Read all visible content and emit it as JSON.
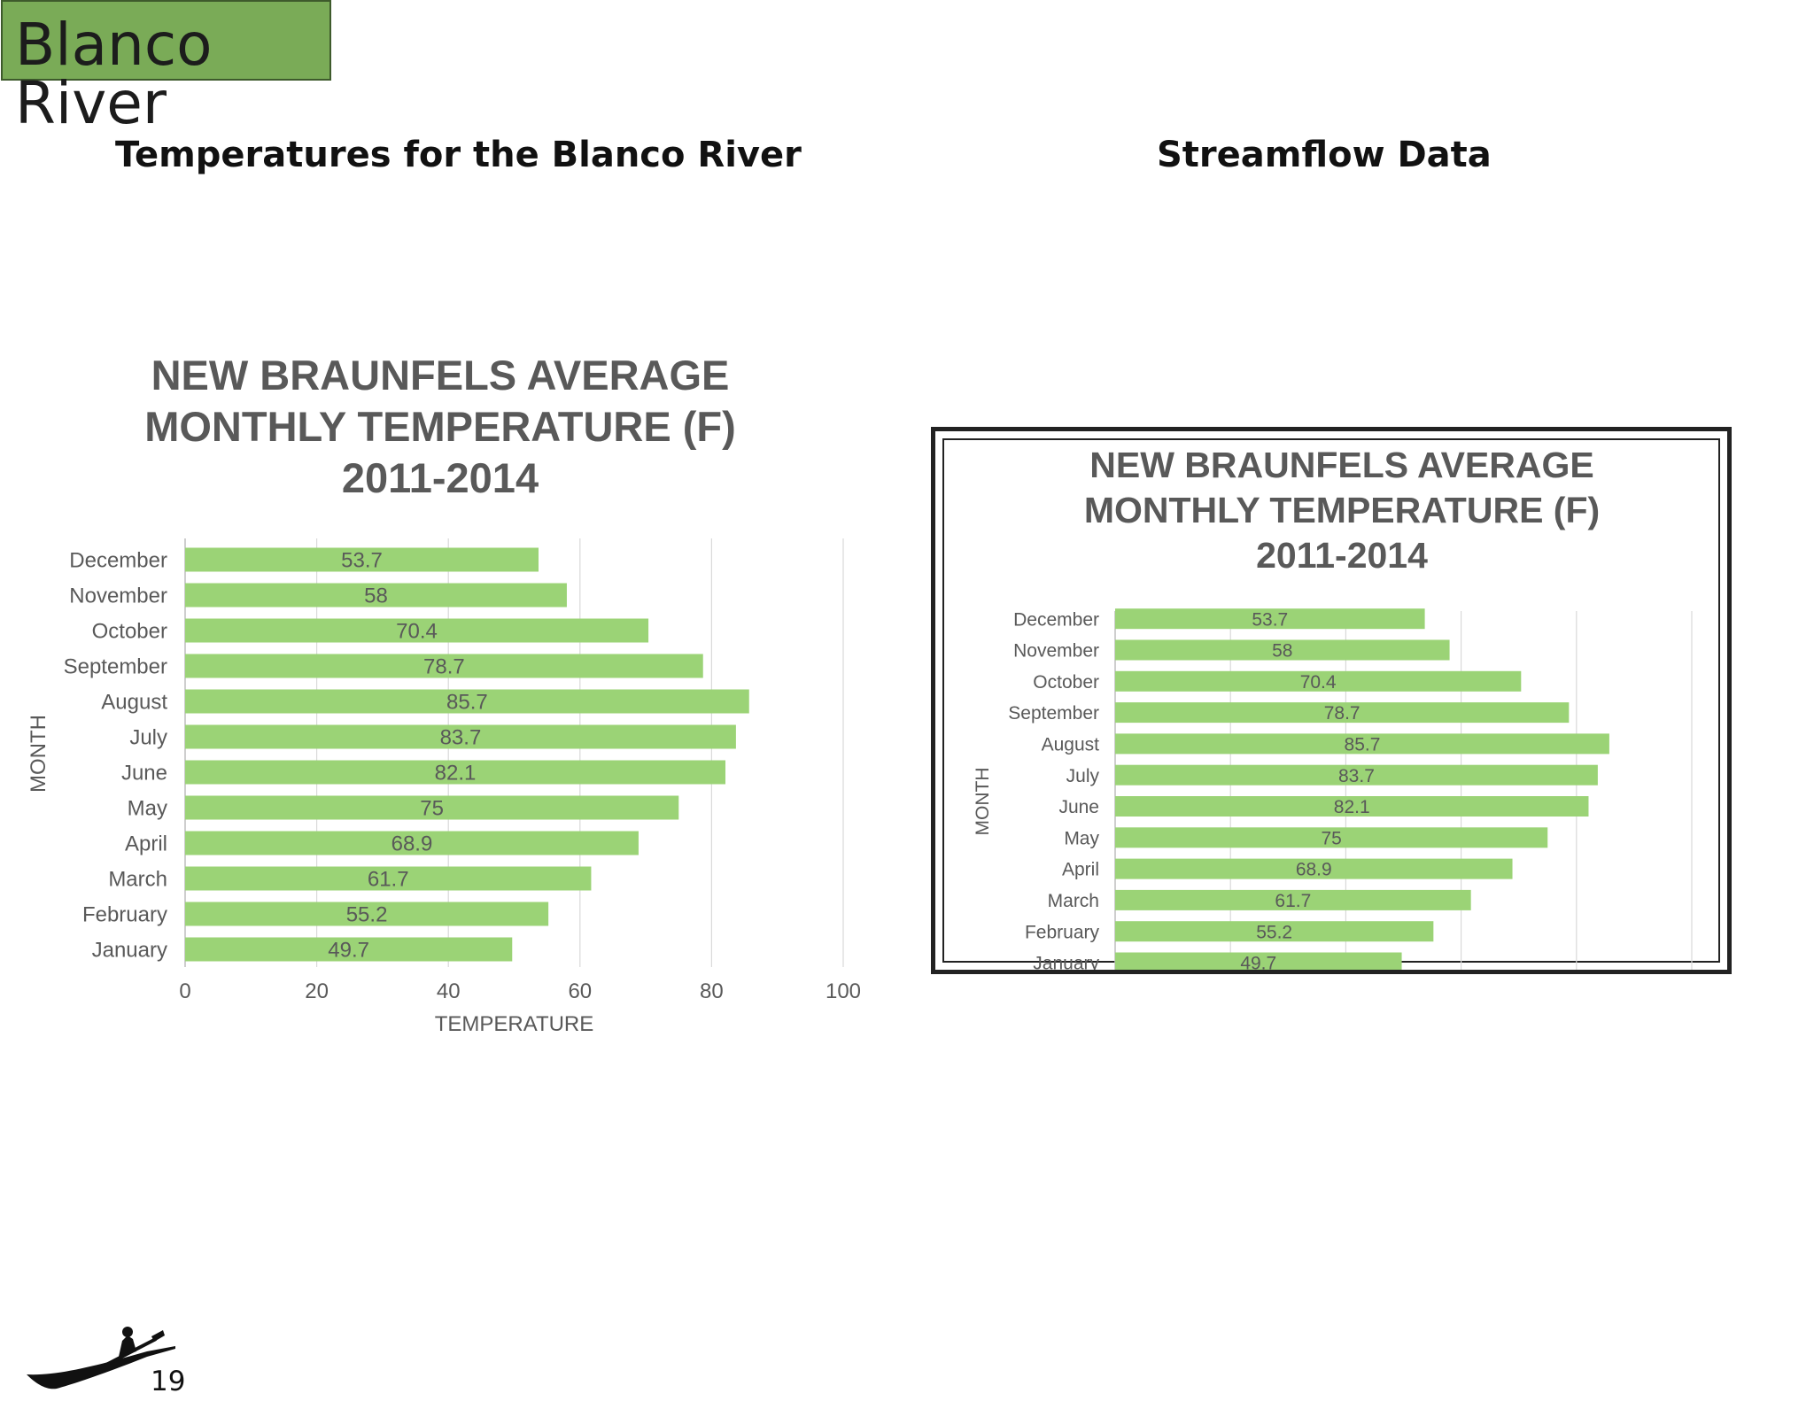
{
  "page": {
    "section_label": "Blanco River",
    "left_heading": "Temperatures for the Blanco River",
    "right_heading": "Streamflow Data",
    "page_number": "19"
  },
  "colors": {
    "bar": "#9bd376",
    "grid": "#d9d9d9",
    "text": "#595959",
    "title_box": "#7aab57"
  },
  "chart_data": [
    {
      "type": "bar",
      "orientation": "horizontal",
      "title": "NEW BRAUNFELS AVERAGE MONTHLY TEMPERATURE (F) 2011-2014",
      "title_lines": [
        "NEW BRAUNFELS AVERAGE",
        "MONTHLY TEMPERATURE (F)",
        "2011-2014"
      ],
      "xlabel": "TEMPERATURE",
      "ylabel": "MONTH",
      "categories": [
        "January",
        "February",
        "March",
        "April",
        "May",
        "June",
        "July",
        "August",
        "September",
        "October",
        "November",
        "December"
      ],
      "values": [
        49.7,
        55.2,
        61.7,
        68.9,
        75,
        82.1,
        83.7,
        85.7,
        78.7,
        70.4,
        58,
        53.7
      ],
      "data_labels": [
        "49.7",
        "55.2",
        "61.7",
        "68.9",
        "75",
        "82.1",
        "83.7",
        "85.7",
        "78.7",
        "70.4",
        "58",
        "53.7"
      ],
      "xlim": [
        0,
        100
      ],
      "xticks": [
        "0",
        "20",
        "40",
        "60",
        "80",
        "100"
      ],
      "grid": true,
      "legend": "none"
    },
    {
      "type": "bar",
      "orientation": "horizontal",
      "title": "NEW BRAUNFELS AVERAGE MONTHLY TEMPERATURE (F) 2011-2014",
      "title_lines": [
        "NEW BRAUNFELS AVERAGE",
        "MONTHLY TEMPERATURE (F)",
        "2011-2014"
      ],
      "ylabel": "MONTH",
      "categories": [
        "January",
        "February",
        "March",
        "April",
        "May",
        "June",
        "July",
        "August",
        "September",
        "October",
        "November",
        "December"
      ],
      "values": [
        49.7,
        55.2,
        61.7,
        68.9,
        75,
        82.1,
        83.7,
        85.7,
        78.7,
        70.4,
        58,
        53.7
      ],
      "data_labels": [
        "49.7",
        "55.2",
        "61.7",
        "68.9",
        "75",
        "82.1",
        "83.7",
        "85.7",
        "78.7",
        "70.4",
        "58",
        "53.7"
      ],
      "xlim": [
        0,
        100
      ],
      "grid": true,
      "legend": "none",
      "cropped": "bottom"
    }
  ]
}
